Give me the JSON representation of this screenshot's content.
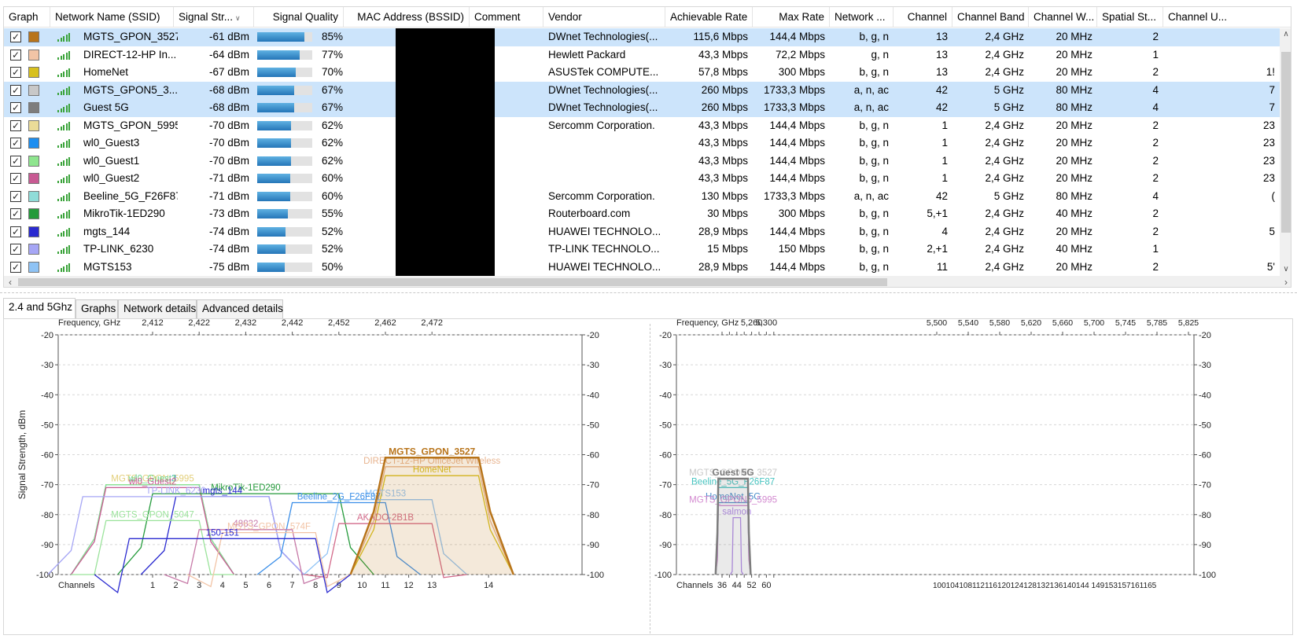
{
  "columns": {
    "graph": "Graph",
    "ssid": "Network Name (SSID)",
    "signal": "Signal Str...",
    "quality": "Signal Quality",
    "mac": "MAC Address (BSSID)",
    "comment": "Comment",
    "vendor": "Vendor",
    "achievable": "Achievable Rate",
    "maxrate": "Max Rate",
    "network": "Network ...",
    "channel": "Channel",
    "band": "Channel Band",
    "width": "Channel W...",
    "spatial": "Spatial St...",
    "util": "Channel U..."
  },
  "networks": [
    {
      "ssid": "MGTS_GPON_3527",
      "signal": "-61 dBm",
      "quality": 85,
      "quality_label": "85%",
      "vendor": "DWnet Technologies(...",
      "achievable": "115,6 Mbps",
      "maxrate": "144,4 Mbps",
      "modes": "b, g, n",
      "channel": "13",
      "band": "2,4 GHz",
      "width": "20 MHz",
      "spatial": "2",
      "util": "",
      "color": "#b8741a",
      "selected": true
    },
    {
      "ssid": "DIRECT-12-HP In...",
      "signal": "-64 dBm",
      "quality": 77,
      "quality_label": "77%",
      "vendor": "Hewlett Packard",
      "achievable": "43,3 Mbps",
      "maxrate": "72,2 Mbps",
      "modes": "g, n",
      "channel": "13",
      "band": "2,4 GHz",
      "width": "20 MHz",
      "spatial": "1",
      "util": "",
      "color": "#f2c4a6",
      "selected": false
    },
    {
      "ssid": "HomeNet",
      "signal": "-67 dBm",
      "quality": 70,
      "quality_label": "70%",
      "vendor": "ASUSTek COMPUTE...",
      "achievable": "57,8 Mbps",
      "maxrate": "300 Mbps",
      "modes": "b, g, n",
      "channel": "13",
      "band": "2,4 GHz",
      "width": "20 MHz",
      "spatial": "2",
      "util": "1!",
      "color": "#d7c01e",
      "selected": false
    },
    {
      "ssid": "MGTS_GPON5_3...",
      "signal": "-68 dBm",
      "quality": 67,
      "quality_label": "67%",
      "vendor": "DWnet Technologies(...",
      "achievable": "260 Mbps",
      "maxrate": "1733,3 Mbps",
      "modes": "a, n, ac",
      "channel": "42",
      "band": "5 GHz",
      "width": "80 MHz",
      "spatial": "4",
      "util": "7",
      "color": "#c8c8c8",
      "selected": true
    },
    {
      "ssid": "Guest 5G",
      "signal": "-68 dBm",
      "quality": 67,
      "quality_label": "67%",
      "vendor": "DWnet Technologies(...",
      "achievable": "260 Mbps",
      "maxrate": "1733,3 Mbps",
      "modes": "a, n, ac",
      "channel": "42",
      "band": "5 GHz",
      "width": "80 MHz",
      "spatial": "4",
      "util": "7",
      "color": "#7d7d7d",
      "selected": true
    },
    {
      "ssid": "MGTS_GPON_5995",
      "signal": "-70 dBm",
      "quality": 62,
      "quality_label": "62%",
      "vendor": "Sercomm Corporation.",
      "achievable": "43,3 Mbps",
      "maxrate": "144,4 Mbps",
      "modes": "b, g, n",
      "channel": "1",
      "band": "2,4 GHz",
      "width": "20 MHz",
      "spatial": "2",
      "util": "23",
      "color": "#eadb98",
      "selected": false
    },
    {
      "ssid": "wl0_Guest3",
      "signal": "-70 dBm",
      "quality": 62,
      "quality_label": "62%",
      "vendor": "",
      "achievable": "43,3 Mbps",
      "maxrate": "144,4 Mbps",
      "modes": "b, g, n",
      "channel": "1",
      "band": "2,4 GHz",
      "width": "20 MHz",
      "spatial": "2",
      "util": "23",
      "color": "#1d8ef0",
      "selected": false
    },
    {
      "ssid": "wl0_Guest1",
      "signal": "-70 dBm",
      "quality": 62,
      "quality_label": "62%",
      "vendor": "",
      "achievable": "43,3 Mbps",
      "maxrate": "144,4 Mbps",
      "modes": "b, g, n",
      "channel": "1",
      "band": "2,4 GHz",
      "width": "20 MHz",
      "spatial": "2",
      "util": "23",
      "color": "#8ee58e",
      "selected": false
    },
    {
      "ssid": "wl0_Guest2",
      "signal": "-71 dBm",
      "quality": 60,
      "quality_label": "60%",
      "vendor": "",
      "achievable": "43,3 Mbps",
      "maxrate": "144,4 Mbps",
      "modes": "b, g, n",
      "channel": "1",
      "band": "2,4 GHz",
      "width": "20 MHz",
      "spatial": "2",
      "util": "23",
      "color": "#c85a93",
      "selected": false
    },
    {
      "ssid": "Beeline_5G_F26F87",
      "signal": "-71 dBm",
      "quality": 60,
      "quality_label": "60%",
      "vendor": "Sercomm Corporation.",
      "achievable": "130 Mbps",
      "maxrate": "1733,3 Mbps",
      "modes": "a, n, ac",
      "channel": "42",
      "band": "5 GHz",
      "width": "80 MHz",
      "spatial": "4",
      "util": "(",
      "color": "#8fdcd8",
      "selected": false
    },
    {
      "ssid": "MikroTik-1ED290",
      "signal": "-73 dBm",
      "quality": 55,
      "quality_label": "55%",
      "vendor": "Routerboard.com",
      "achievable": "30 Mbps",
      "maxrate": "300 Mbps",
      "modes": "b, g, n",
      "channel": "5,+1",
      "band": "2,4 GHz",
      "width": "40 MHz",
      "spatial": "2",
      "util": "",
      "color": "#239a3a",
      "selected": false
    },
    {
      "ssid": "mgts_144",
      "signal": "-74 dBm",
      "quality": 52,
      "quality_label": "52%",
      "vendor": "HUAWEI TECHNOLO...",
      "achievable": "28,9 Mbps",
      "maxrate": "144,4 Mbps",
      "modes": "b, g, n",
      "channel": "4",
      "band": "2,4 GHz",
      "width": "20 MHz",
      "spatial": "2",
      "util": "5",
      "color": "#2a2ad0",
      "selected": false
    },
    {
      "ssid": "TP-LINK_6230",
      "signal": "-74 dBm",
      "quality": 52,
      "quality_label": "52%",
      "vendor": "TP-LINK TECHNOLO...",
      "achievable": "15 Mbps",
      "maxrate": "150 Mbps",
      "modes": "b, g, n",
      "channel": "2,+1",
      "band": "2,4 GHz",
      "width": "40 MHz",
      "spatial": "1",
      "util": "",
      "color": "#a6a6f5",
      "selected": false
    },
    {
      "ssid": "MGTS153",
      "signal": "-75 dBm",
      "quality": 50,
      "quality_label": "50%",
      "vendor": "HUAWEI TECHNOLO...",
      "achievable": "28,9 Mbps",
      "maxrate": "144,4 Mbps",
      "modes": "b, g, n",
      "channel": "11",
      "band": "2,4 GHz",
      "width": "20 MHz",
      "spatial": "2",
      "util": "5'",
      "color": "#8fc3f5",
      "selected": false
    }
  ],
  "tabs": [
    {
      "label": "2.4 and 5Ghz",
      "active": true
    },
    {
      "label": "Graphs",
      "active": false
    },
    {
      "label": "Network details",
      "active": false
    },
    {
      "label": "Advanced details",
      "active": false
    }
  ],
  "chart_data": [
    {
      "type": "area",
      "title": "",
      "top_axis_label": "Frequency, GHz",
      "xlabel": "Channels",
      "ylabel": "Signal Strength, dBm",
      "ylim": [
        -100,
        -20
      ],
      "y_ticks": [
        "-20",
        "-30",
        "-40",
        "-50",
        "-60",
        "-70",
        "-80",
        "-90",
        "-100"
      ],
      "freq_ticks": [
        {
          "ch": 1,
          "label": "2,412"
        },
        {
          "ch": 3,
          "label": "2,422"
        },
        {
          "ch": 5,
          "label": "2,432"
        },
        {
          "ch": 7,
          "label": "2,442"
        },
        {
          "ch": 9,
          "label": "2,452"
        },
        {
          "ch": 11,
          "label": "2,462"
        },
        {
          "ch": 13,
          "label": "2,472"
        }
      ],
      "channel_ticks": [
        "1",
        "2",
        "3",
        "4",
        "5",
        "6",
        "7",
        "8",
        "9",
        "10",
        "11",
        "12",
        "13",
        "14"
      ],
      "grid": true,
      "series": [
        {
          "name": "MGTS_GPON_3527",
          "center": 13,
          "width_mhz": 20,
          "dbm": -61,
          "color": "#b8741a",
          "filled": true,
          "label_shown": "MGTS_GPON_3527"
        },
        {
          "name": "DIRECT-12-HP In...",
          "center": 13,
          "width_mhz": 20,
          "dbm": -64,
          "color": "#e8b48f",
          "filled": false,
          "label_shown": "DIRECT-12-HP OfficeJet Wireless"
        },
        {
          "name": "HomeNet",
          "center": 13,
          "width_mhz": 20,
          "dbm": -67,
          "color": "#d7c01e",
          "filled": false,
          "label_shown": "HomeNet"
        },
        {
          "name": "MGTS_GPON_5995",
          "center": 1,
          "width_mhz": 20,
          "dbm": -70,
          "color": "#e3cf7a",
          "filled": false,
          "label_shown": "MGTS_GPON_5995"
        },
        {
          "name": "wl0_Guest3",
          "center": 1,
          "width_mhz": 20,
          "dbm": -70,
          "color": "#1d8ef0",
          "filled": false,
          "label_shown": "wl0_Guest3"
        },
        {
          "name": "wl0_Guest1",
          "center": 1,
          "width_mhz": 20,
          "dbm": -70,
          "color": "#8ee58e",
          "filled": false,
          "label_shown": "wl0_Guest1"
        },
        {
          "name": "wl0_Guest2",
          "center": 1,
          "width_mhz": 20,
          "dbm": -71,
          "color": "#c85a93",
          "filled": false,
          "label_shown": "wl0_Guest2"
        },
        {
          "name": "MikroTik-1ED290",
          "center": 5,
          "width_mhz": 40,
          "dbm": -73,
          "color": "#239a3a",
          "filled": false,
          "label_shown": "MikroTik-1ED290"
        },
        {
          "name": "mgts_144",
          "center": 4,
          "width_mhz": 20,
          "dbm": -74,
          "color": "#2a2ad0",
          "filled": false,
          "label_shown": "mgts_144"
        },
        {
          "name": "TP-LINK_6230",
          "center": 2,
          "width_mhz": 40,
          "dbm": -74,
          "color": "#a6a6f5",
          "filled": false,
          "label_shown": "TP-LINK_6230"
        },
        {
          "name": "MGTS153",
          "center": 11,
          "width_mhz": 20,
          "dbm": -75,
          "color": "#8fc3f5",
          "filled": false,
          "label_shown": "MGTS153"
        },
        {
          "name": "Beeline_2G_F26F87",
          "center": 9,
          "width_mhz": 20,
          "dbm": -76,
          "color": "#3a8ee8",
          "filled": false,
          "label_shown": "Beeline_2G_F26F87"
        },
        {
          "name": "MGTS_GPON_5047",
          "center": 1,
          "width_mhz": 20,
          "dbm": -82,
          "color": "#9be39b",
          "filled": false,
          "label_shown": "MGTS_GPON_5047"
        },
        {
          "name": "AKADO-2B1B",
          "center": 11,
          "width_mhz": 20,
          "dbm": -83,
          "color": "#d36b8b",
          "filled": false,
          "label_shown": "AKADO-2B1B"
        },
        {
          "name": "48832",
          "center": 5,
          "width_mhz": 20,
          "dbm": -85,
          "color": "#c77aa8",
          "filled": false,
          "label_shown": "48832"
        },
        {
          "name": "MGTS_GPON_574F",
          "center": 6,
          "width_mhz": 20,
          "dbm": -86,
          "color": "#f2c4a6",
          "filled": false,
          "label_shown": "MGTS_GPON_574F"
        },
        {
          "name": "150-151",
          "center": 4,
          "width_mhz": 40,
          "dbm": -88,
          "color": "#2a2ad0",
          "filled": false,
          "label_shown": "150-151"
        }
      ]
    },
    {
      "type": "area",
      "title": "",
      "top_axis_label": "Frequency, GHz",
      "xlabel": "Channels",
      "ylabel": "Signal Strength, dBm",
      "ylim": [
        -100,
        -20
      ],
      "y_ticks": [
        "-20",
        "-30",
        "-40",
        "-50",
        "-60",
        "-70",
        "-80",
        "-90",
        "-100"
      ],
      "freq_ticks_low": [
        "5,260",
        "5,300"
      ],
      "freq_ticks_high": [
        "5,500",
        "5,540",
        "5,580",
        "5,620",
        "5,660",
        "5,700",
        "5,745",
        "5,785",
        "5,825"
      ],
      "channel_ticks_low": [
        "36",
        "44",
        "52",
        "60"
      ],
      "channel_ticks_high": "100104108112116120124128132136140144 149153157161165",
      "grid": true,
      "series": [
        {
          "name": "Guest 5G",
          "center": 42,
          "width_mhz": 80,
          "dbm": -68,
          "color": "#7d7d7d",
          "filled": true,
          "label_shown": "Guest 5G"
        },
        {
          "name": "MGTS_GPON5_3527",
          "center": 42,
          "width_mhz": 80,
          "dbm": -68,
          "color": "#c8c8c8",
          "filled": false,
          "label_shown": "MGTS_GPON5_3527"
        },
        {
          "name": "Beeline_5G_F26F87",
          "center": 42,
          "width_mhz": 80,
          "dbm": -71,
          "color": "#46c4c0",
          "filled": false,
          "label_shown": "Beeline_5G_F26F87"
        },
        {
          "name": "HomeNet_5G",
          "center": 42,
          "width_mhz": 80,
          "dbm": -76,
          "color": "#4a8ec9",
          "filled": false,
          "label_shown": "HomeNet_5G"
        },
        {
          "name": "MGTS_GPON5_5995",
          "center": 42,
          "width_mhz": 80,
          "dbm": -77,
          "color": "#d38ad0",
          "filled": false,
          "label_shown": "MGTS_GPON5_5995"
        },
        {
          "name": "salmon",
          "center": 44,
          "width_mhz": 20,
          "dbm": -81,
          "color": "#b28ae8",
          "filled": false,
          "label_shown": "salmon"
        }
      ]
    }
  ]
}
